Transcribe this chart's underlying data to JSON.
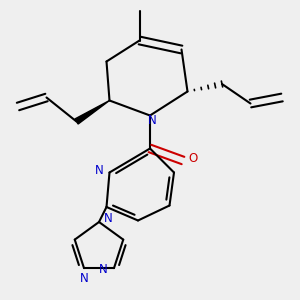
{
  "bg_color": "#efefef",
  "bond_color": "#000000",
  "N_color": "#0000cc",
  "O_color": "#cc0000",
  "line_width": 1.5,
  "figsize": [
    3.0,
    3.0
  ],
  "dpi": 100,
  "xlim": [
    0.0,
    10.0
  ],
  "ylim": [
    0.0,
    10.0
  ]
}
